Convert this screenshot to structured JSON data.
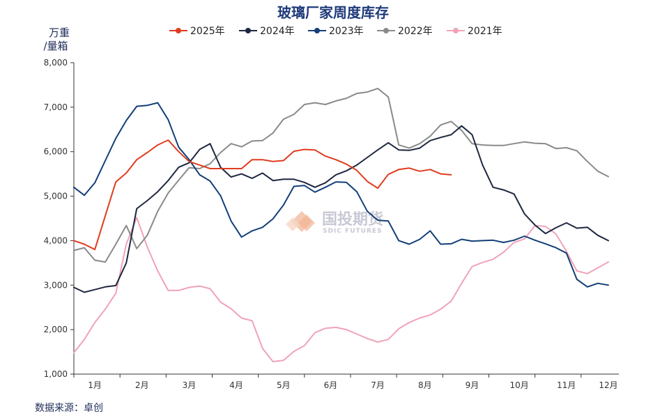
{
  "chart_data": {
    "type": "line",
    "title": "玻璃厂家周度库存",
    "ylabel_line1": "万重",
    "ylabel_line2": "/量箱",
    "ylim": [
      1000,
      8000
    ],
    "yticks": [
      1000,
      2000,
      3000,
      4000,
      5000,
      6000,
      7000,
      8000
    ],
    "ytick_labels": [
      "1,000",
      "2,000",
      "3,000",
      "4,000",
      "5,000",
      "6,000",
      "7,000",
      "8,000"
    ],
    "xlim": [
      1,
      53
    ],
    "xticks_weeks": [
      3,
      7.5,
      12,
      16.5,
      21,
      25.5,
      30,
      34.5,
      39,
      43.5,
      48,
      52
    ],
    "xtick_labels": [
      "1月",
      "2月",
      "3月",
      "4月",
      "5月",
      "6月",
      "7月",
      "8月",
      "9月",
      "10月",
      "11月",
      "12月"
    ],
    "grid": false,
    "legend_position": "top",
    "series": [
      {
        "name": "2025年",
        "color": "#e03c1f",
        "values": [
          4000,
          3920,
          3800,
          4560,
          5320,
          5520,
          5820,
          5980,
          6150,
          6260,
          6000,
          5780,
          5700,
          5620,
          5620,
          5620,
          5620,
          5820,
          5820,
          5780,
          5800,
          6010,
          6050,
          6040,
          5900,
          5820,
          5720,
          5580,
          5330,
          5180,
          5490,
          5600,
          5630,
          5560,
          5600,
          5500,
          5480
        ]
      },
      {
        "name": "2024年",
        "color": "#1e2740",
        "values": [
          2950,
          2840,
          2900,
          2960,
          2990,
          3500,
          4720,
          4900,
          5100,
          5350,
          5650,
          5750,
          6050,
          6180,
          5650,
          5430,
          5500,
          5400,
          5520,
          5350,
          5380,
          5380,
          5310,
          5200,
          5300,
          5480,
          5570,
          5700,
          5870,
          6040,
          6200,
          6040,
          6030,
          6080,
          6250,
          6320,
          6380,
          6580,
          6380,
          5700,
          5200,
          5140,
          5050,
          4600,
          4350,
          4160,
          4290,
          4400,
          4280,
          4300,
          4120,
          4000
        ]
      },
      {
        "name": "2023年",
        "color": "#123f78",
        "values": [
          5200,
          5020,
          5300,
          5800,
          6300,
          6700,
          7020,
          7040,
          7100,
          6720,
          6100,
          5820,
          5480,
          5340,
          5010,
          4440,
          4080,
          4220,
          4300,
          4490,
          4800,
          5220,
          5240,
          5090,
          5200,
          5320,
          5310,
          5100,
          4660,
          4460,
          4440,
          4000,
          3920,
          4030,
          4220,
          3920,
          3930,
          4030,
          3990,
          4000,
          4010,
          3960,
          4010,
          4100,
          4010,
          3930,
          3840,
          3720,
          3130,
          2960,
          3040,
          3000
        ]
      },
      {
        "name": "2022年",
        "color": "#8a8a8a",
        "values": [
          3780,
          3840,
          3560,
          3520,
          3920,
          4340,
          3820,
          4120,
          4660,
          5070,
          5360,
          5640,
          5620,
          5730,
          5980,
          6180,
          6110,
          6240,
          6250,
          6420,
          6730,
          6840,
          7060,
          7100,
          7060,
          7140,
          7200,
          7310,
          7340,
          7420,
          7230,
          6150,
          6080,
          6180,
          6350,
          6600,
          6680,
          6480,
          6180,
          6150,
          6140,
          6140,
          6180,
          6220,
          6190,
          6180,
          6070,
          6090,
          6020,
          5780,
          5560,
          5440
        ]
      },
      {
        "name": "2021年",
        "color": "#f0a3b8",
        "values": [
          1480,
          1780,
          2160,
          2460,
          2820,
          3920,
          4520,
          3860,
          3320,
          2880,
          2880,
          2950,
          2980,
          2920,
          2620,
          2470,
          2260,
          2200,
          1580,
          1280,
          1310,
          1510,
          1640,
          1930,
          2030,
          2050,
          2000,
          1900,
          1800,
          1720,
          1780,
          2020,
          2160,
          2260,
          2330,
          2460,
          2640,
          3040,
          3420,
          3510,
          3580,
          3740,
          3960,
          4040,
          4340,
          4320,
          4150,
          3760,
          3320,
          3260,
          3390,
          3520
        ]
      }
    ]
  },
  "watermark": {
    "cn": "国投期货",
    "en": "SDIC FUTURES"
  },
  "source": "数据来源：卓创"
}
